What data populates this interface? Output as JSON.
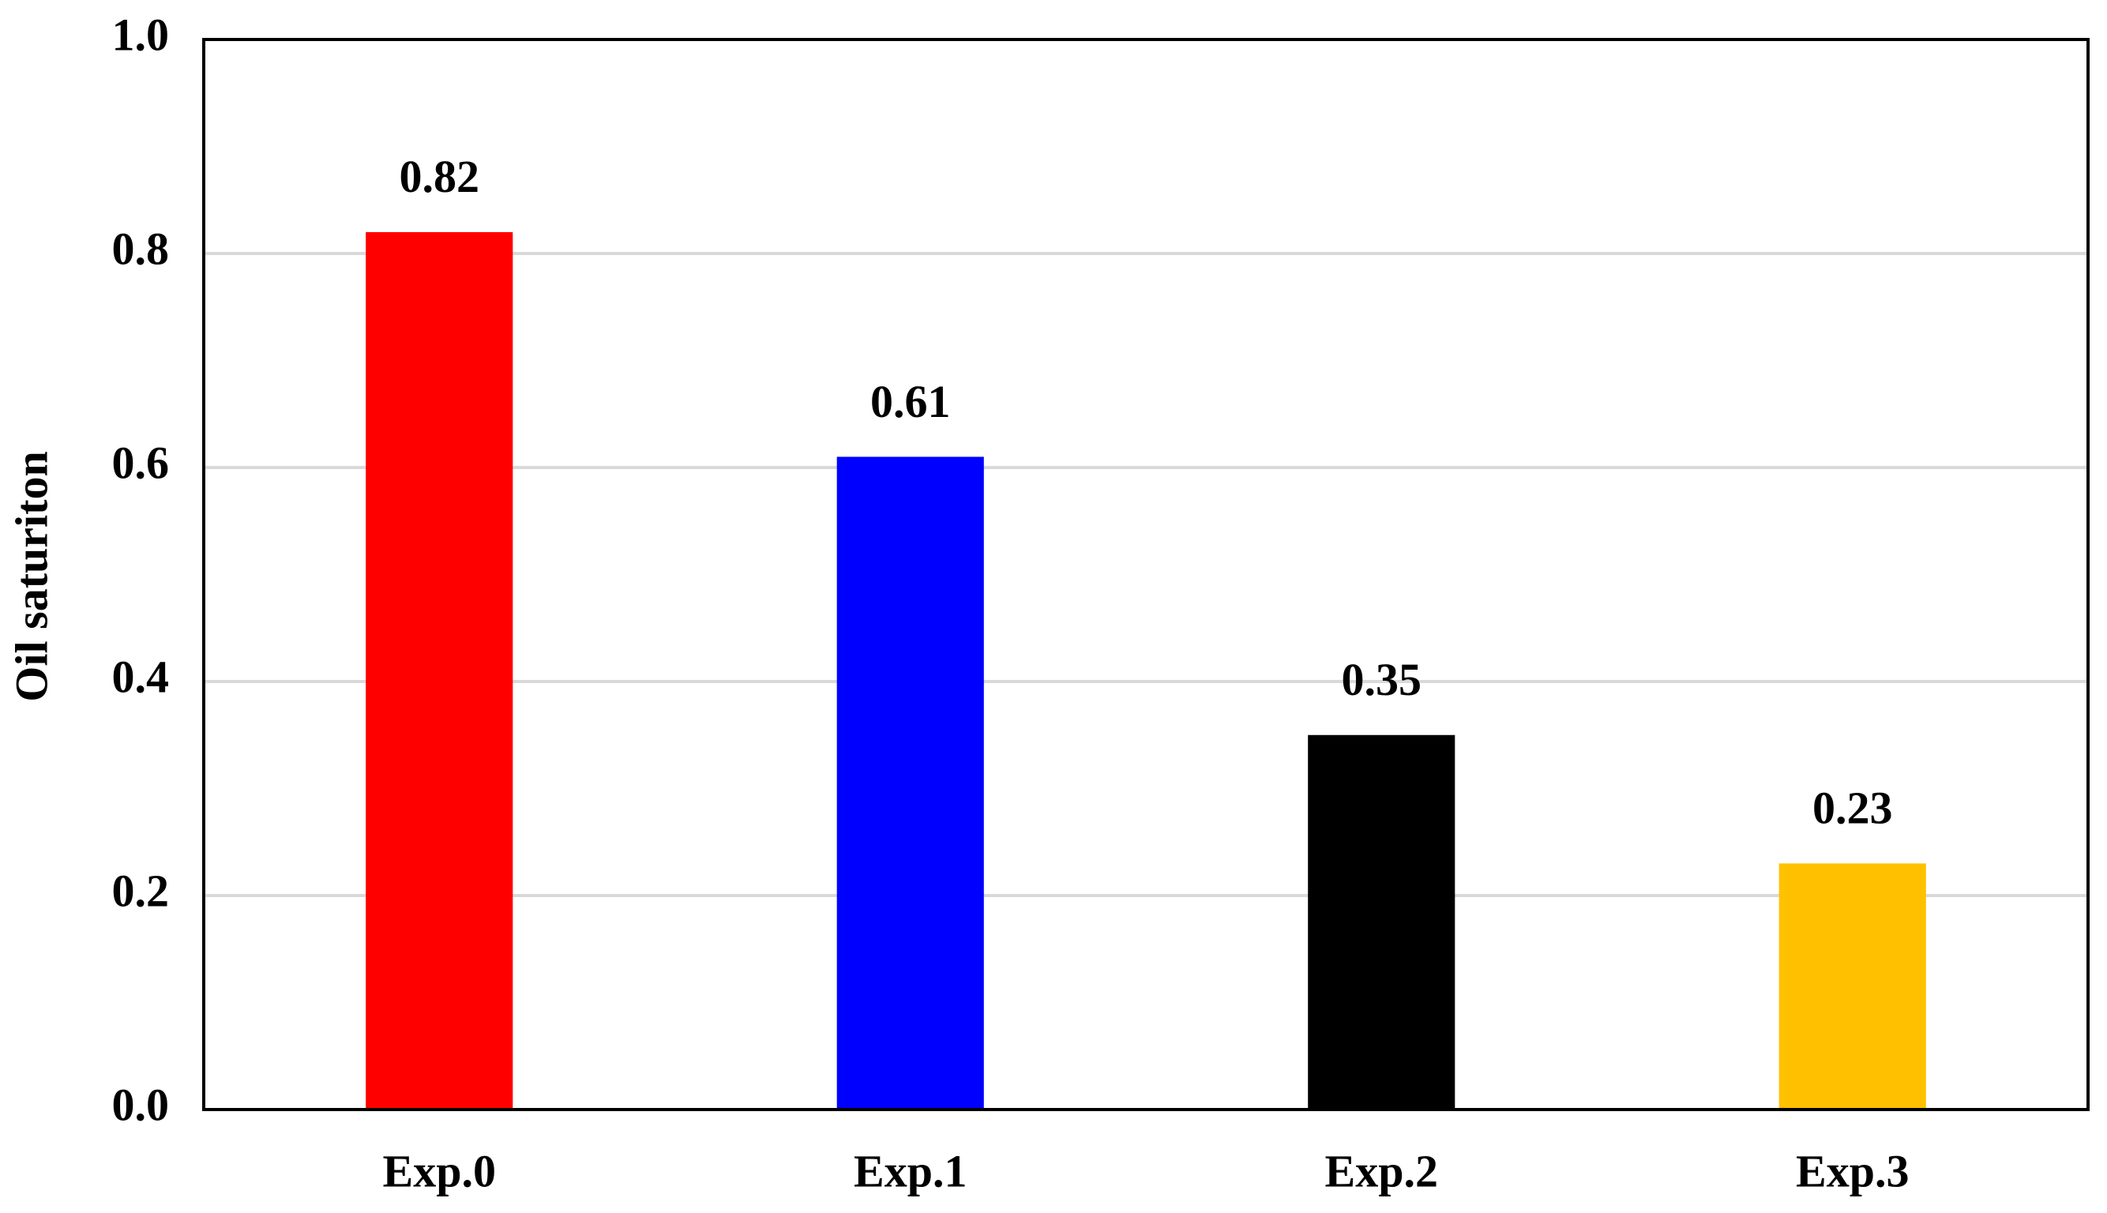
{
  "chart_data": {
    "type": "bar",
    "y_label": "Oil saturiton",
    "categories": [
      "Exp.0",
      "Exp.1",
      "Exp.2",
      "Exp.3"
    ],
    "values": [
      0.82,
      0.61,
      0.35,
      0.23
    ],
    "colors": [
      "#ff0000",
      "#0000ff",
      "#000000",
      "#ffc000"
    ],
    "ylim": [
      0,
      1
    ],
    "yticks": [
      {
        "value": 0,
        "label": "0.0"
      },
      0.2,
      0.4,
      0.6,
      0.8,
      {
        "value": 1,
        "label": "1.0"
      }
    ],
    "grid": true
  }
}
